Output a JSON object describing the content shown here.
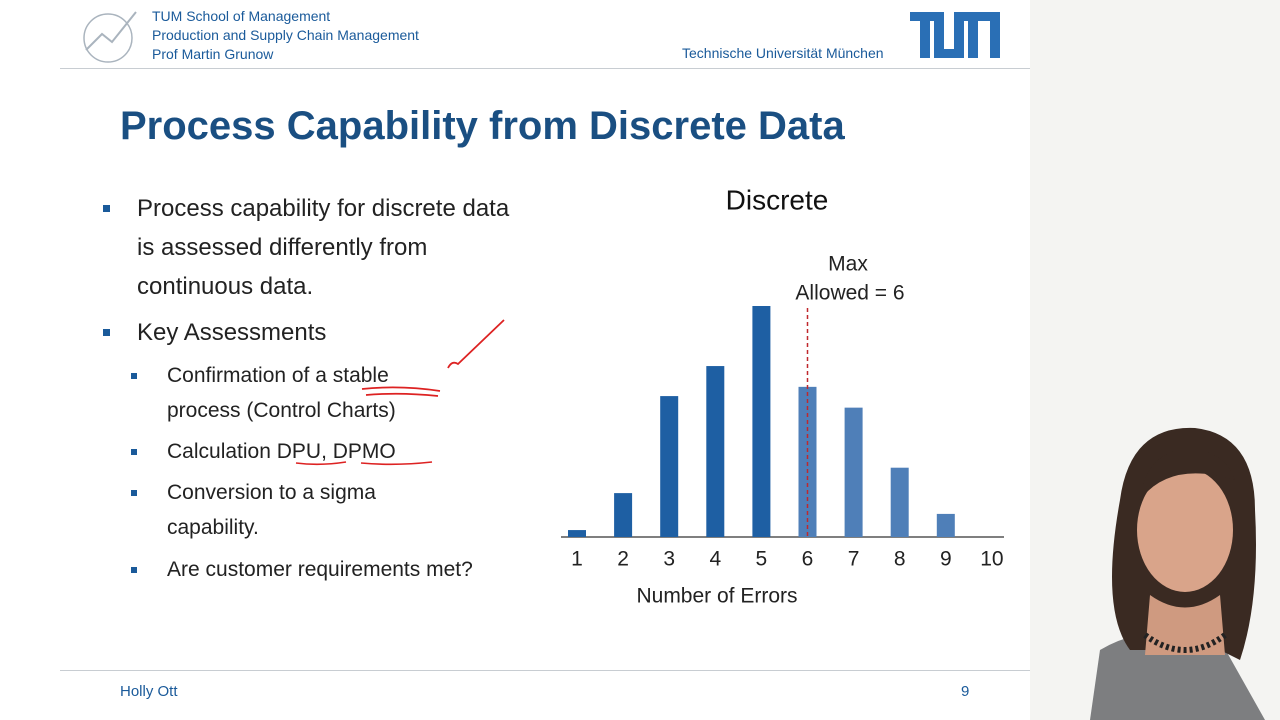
{
  "header": {
    "lines": [
      "TUM School of Management",
      "Production and Supply Chain Management",
      "Prof Martin Grunow"
    ],
    "university": "Technische Universität München"
  },
  "slide": {
    "title": "Process Capability from Discrete Data",
    "bullets": [
      {
        "text": "Process capability for discrete data is assessed differently from continuous data.",
        "sub": []
      },
      {
        "text": "Key Assessments",
        "sub": [
          "Confirmation of a stable process (Control Charts)",
          "Calculation DPU, DPMO",
          "Conversion to a sigma capability.",
          "Are customer requirements met?"
        ]
      }
    ]
  },
  "chart_data": {
    "type": "bar",
    "title": "Discrete",
    "x_label": "Number of Errors",
    "categories": [
      "1",
      "2",
      "3",
      "4",
      "5",
      "6",
      "7",
      "8",
      "9",
      "10"
    ],
    "values": [
      3,
      19,
      61,
      74,
      100,
      65,
      56,
      30,
      10,
      0
    ],
    "colors": [
      "#1e5fa3",
      "#1e5fa3",
      "#1e5fa3",
      "#1e5fa3",
      "#1e5fa3",
      "#4f7fb8",
      "#4f7fb8",
      "#4f7fb8",
      "#4f7fb8",
      "#4f7fb8"
    ],
    "ylim": [
      0,
      100
    ],
    "annotation": [
      "Max",
      "Allowed = 6"
    ]
  },
  "footer": {
    "author": "Holly Ott",
    "page": "9"
  }
}
